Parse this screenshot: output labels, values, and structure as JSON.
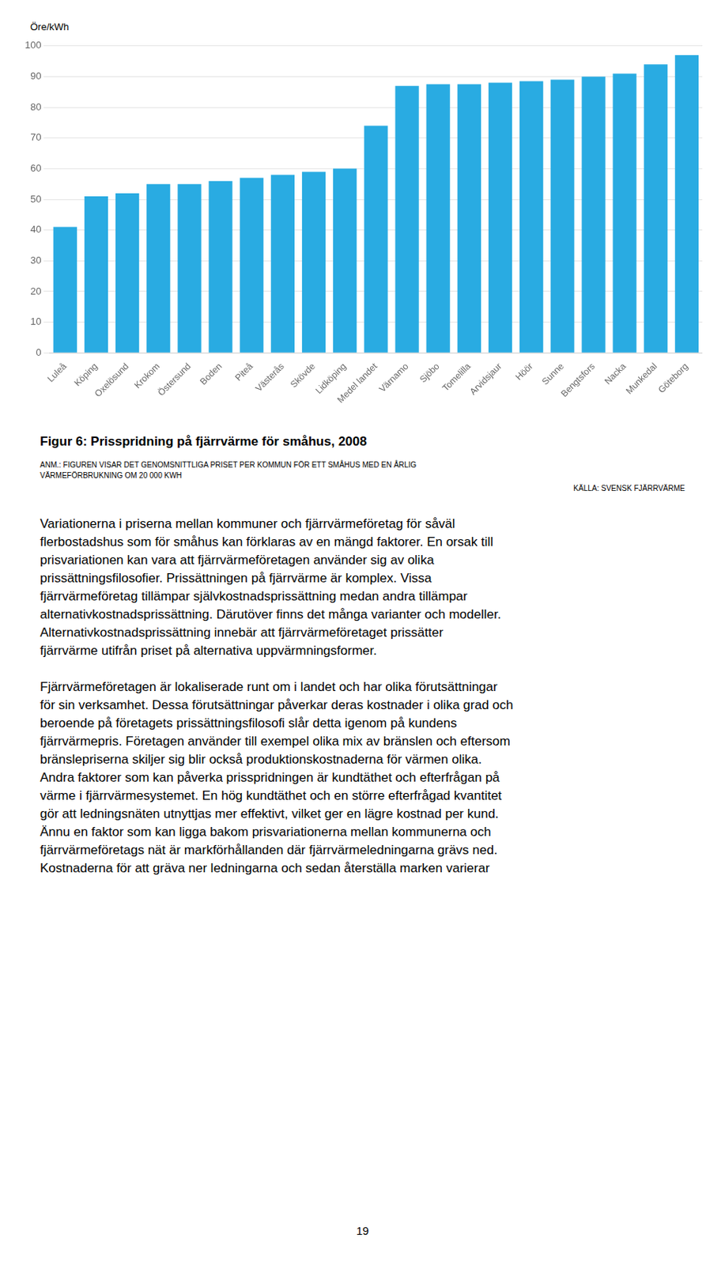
{
  "chart_data": {
    "type": "bar",
    "title": "Figur 6: Prisspridning på fjärrvärme för småhus, 2008",
    "ylabel": "Öre/kWh",
    "categories": [
      "Luleå",
      "Köping",
      "Oxelösund",
      "Krokom",
      "Östersund",
      "Boden",
      "Piteå",
      "Västerås",
      "Skövde",
      "Lidköping",
      "Medel landet",
      "Värnamo",
      "Sjöbo",
      "Tomelilla",
      "Arvidsjaur",
      "Höör",
      "Sunne",
      "Bengtsfors",
      "Nacka",
      "Munkedal",
      "Göteborg"
    ],
    "values": [
      41,
      51,
      52,
      55,
      55,
      56,
      57,
      58,
      59,
      60,
      74,
      87,
      87.5,
      87.5,
      88,
      88.5,
      89,
      90,
      91,
      94,
      97
    ],
    "color": "#29ABE2",
    "ylim": [
      0,
      100
    ],
    "yticks": [
      0,
      10,
      20,
      30,
      40,
      50,
      60,
      70,
      80,
      90,
      100
    ],
    "grid": true,
    "annotations": [
      "ANM.: FIGUREN VISAR DET GENOMSNITTLIGA PRISET PER KOMMUN FÖR ETT SMÅHUS MED EN ÅRLIG",
      "VÄRMEFÖRBRUKNING OM 20 000 KWH"
    ],
    "source": "KÄLLA: SVENSK FJÄRRVÄRME"
  },
  "page_text": {
    "paragraphs": [
      [
        "Variationerna i priserna mellan kommuner och fjärrvärmeföretag för såväl",
        "flerbostadshus som för småhus kan förklaras av en mängd faktorer. En orsak till",
        "prisvariationen kan vara att fjärrvärmeföretagen använder sig av olika",
        "prissättningsfilosofier. Prissättningen på fjärrvärme är komplex. Vissa",
        "fjärrvärmeföretag tillämpar självkostnadsprissättning medan andra tillämpar",
        "alternativkostnadsprissättning. Därutöver finns det många varianter och modeller.",
        "Alternativkostnadsprissättning innebär att fjärrvärmeföretaget prissätter",
        "fjärrvärme utifrån priset på alternativa uppvärmningsformer."
      ],
      [
        "Fjärrvärmeföretagen är lokaliserade runt om i landet och har olika förutsättningar",
        "för sin verksamhet. Dessa förutsättningar påverkar deras kostnader i olika grad och",
        "beroende på företagets prissättningsfilosofi slår detta igenom på kundens",
        "fjärrvärmepris. Företagen använder till exempel olika mix av bränslen och eftersom",
        "bränslepriserna skiljer sig blir också produktionskostnaderna för värmen olika.",
        "Andra faktorer som kan påverka prisspridningen är kundtäthet och efterfrågan på",
        "värme i fjärrvärmesystemet. En hög kundtäthet och en större efterfrågad kvantitet",
        "gör att ledningsnäten utnyttjas mer effektivt, vilket ger en lägre kostnad per kund.",
        "Ännu en faktor som kan ligga bakom prisvariationerna mellan kommunerna och",
        "fjärrvärmeföretags nät är markförhållanden där fjärrvärmeledningarna grävs ned.",
        "Kostnaderna för att gräva ner ledningarna och sedan återställa marken varierar"
      ]
    ],
    "page_number": "19"
  }
}
